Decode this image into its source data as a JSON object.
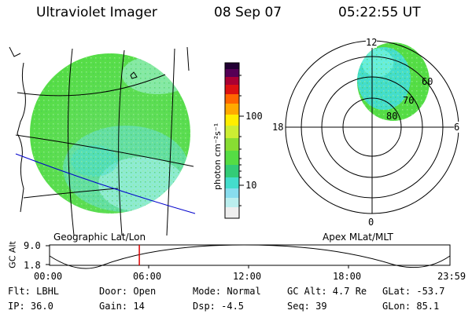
{
  "header": {
    "title": "Ultraviolet Imager",
    "date": "08 Sep 07",
    "time": "05:22:55 UT"
  },
  "colorbar": {
    "unit_label": "photon cm⁻²s⁻¹",
    "ticks": [
      "100",
      "10"
    ]
  },
  "polar": {
    "hours": {
      "top": "12",
      "left": "18",
      "right": "6",
      "bottom": "0"
    },
    "lat_labels": [
      "60",
      "70",
      "80"
    ],
    "caption": "Apex MLat/MLT"
  },
  "geo": {
    "caption": "Geographic Lat/Lon"
  },
  "timeline": {
    "ylabel": "GC Alt",
    "y_ticks": [
      "9.0",
      "1.8"
    ],
    "x_ticks": [
      "00:00",
      "06:00",
      "12:00",
      "18:00",
      "23:59"
    ],
    "current_time_hours": 5.38
  },
  "info": {
    "flt": "Flt: LBHL",
    "ip": "IP: 36.0",
    "door": "Door: Open",
    "gain": "Gain: 14",
    "mode": "Mode: Normal",
    "dsp": "Dsp:   -4.5",
    "gc_alt": "GC Alt: 4.7 Re",
    "seq": "Seq: 39",
    "glat": "GLat: -53.7",
    "glon": "GLon:  85.1"
  },
  "colors": {
    "disk_main": "#55dd44",
    "disk_light": "#88ee99",
    "disk_cyan": "#44ddcc",
    "current_time_marker": "#dd0000",
    "track": "#0000cc"
  }
}
